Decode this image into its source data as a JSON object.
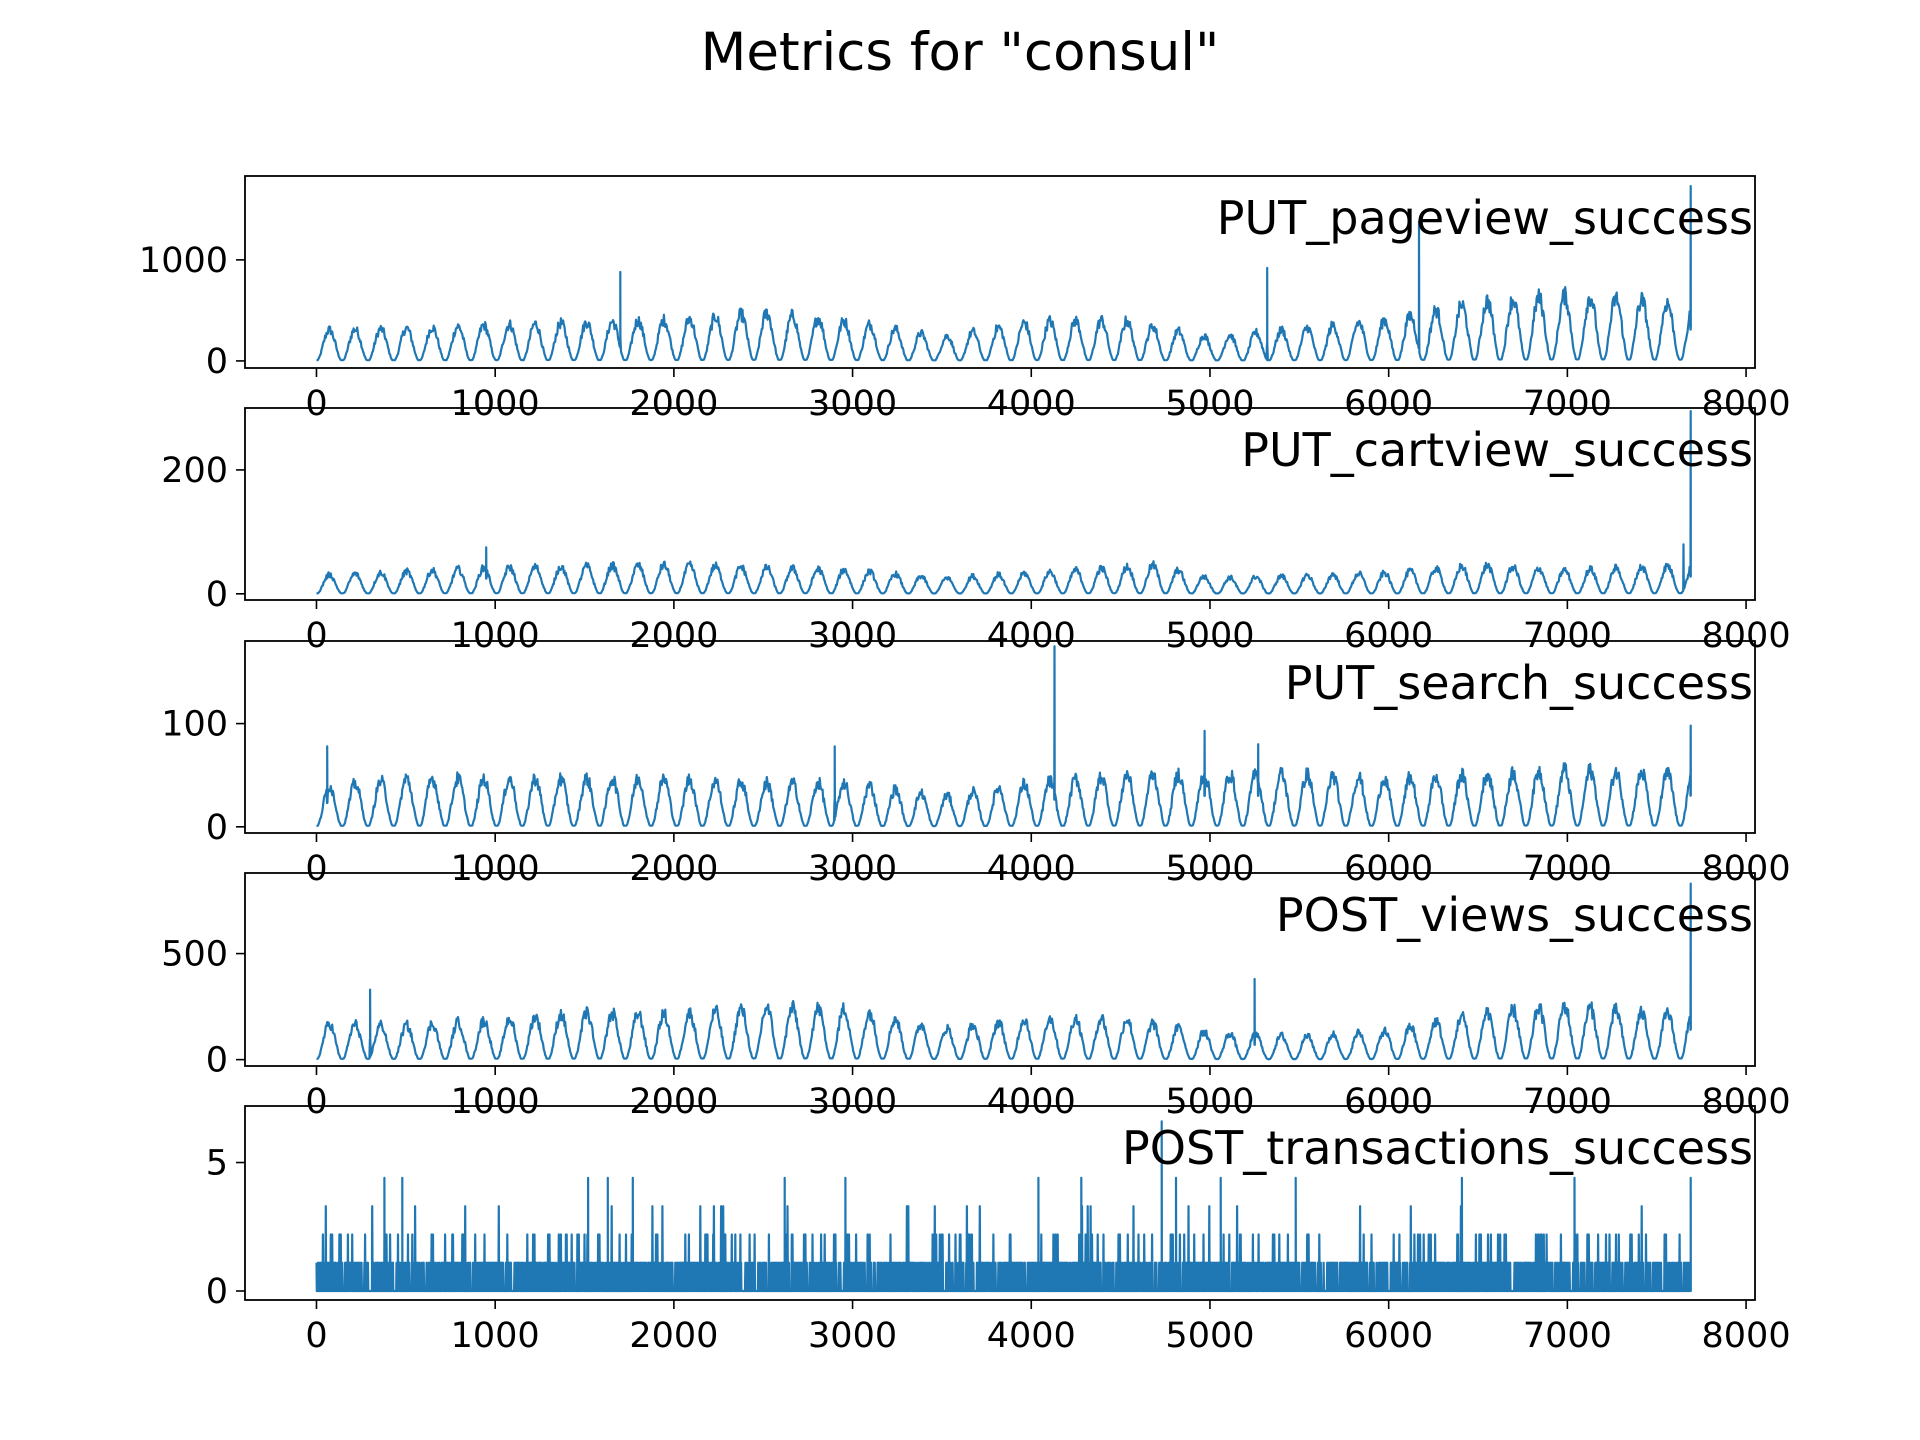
{
  "figure": {
    "title": "Metrics for \"consul\""
  },
  "chart_data": [
    {
      "type": "line",
      "label": "PUT_pageview_success",
      "color": "#1f77b4",
      "xlim": [
        -400,
        8050
      ],
      "ylim": [
        -70,
        1830
      ],
      "xticks": [
        0,
        1000,
        2000,
        3000,
        4000,
        5000,
        6000,
        7000,
        8000
      ],
      "yticks": [
        0,
        1000
      ],
      "series_points": 7690,
      "period": 144,
      "base_envelope": [
        [
          0,
          360
        ],
        [
          500,
          380
        ],
        [
          1000,
          420
        ],
        [
          1500,
          450
        ],
        [
          2000,
          480
        ],
        [
          2500,
          560
        ],
        [
          3000,
          460
        ],
        [
          3500,
          280
        ],
        [
          4000,
          460
        ],
        [
          4500,
          480
        ],
        [
          5000,
          280
        ],
        [
          5500,
          380
        ],
        [
          6000,
          480
        ],
        [
          6500,
          690
        ],
        [
          7000,
          760
        ],
        [
          7500,
          700
        ],
        [
          7690,
          620
        ]
      ],
      "spikes": [
        [
          1700,
          880
        ],
        [
          5320,
          920
        ],
        [
          6170,
          1380
        ],
        [
          7690,
          1730
        ]
      ],
      "x_ticks_text": [
        "0",
        "1000",
        "2000",
        "3000",
        "4000",
        "5000",
        "6000",
        "7000",
        "8000"
      ],
      "y_ticks_text": [
        "0",
        "1000"
      ]
    },
    {
      "type": "line",
      "label": "PUT_cartview_success",
      "color": "#1f77b4",
      "xlim": [
        -400,
        8050
      ],
      "ylim": [
        -10,
        300
      ],
      "xticks": [
        0,
        1000,
        2000,
        3000,
        4000,
        5000,
        6000,
        7000,
        8000
      ],
      "yticks": [
        0,
        200
      ],
      "series_points": 7690,
      "period": 144,
      "base_envelope": [
        [
          0,
          35
        ],
        [
          1000,
          50
        ],
        [
          2000,
          55
        ],
        [
          3000,
          45
        ],
        [
          3500,
          30
        ],
        [
          4000,
          40
        ],
        [
          4700,
          55
        ],
        [
          5000,
          30
        ],
        [
          5500,
          35
        ],
        [
          6000,
          40
        ],
        [
          6500,
          55
        ],
        [
          7000,
          45
        ],
        [
          7690,
          55
        ]
      ],
      "spikes": [
        [
          950,
          75
        ],
        [
          7650,
          80
        ],
        [
          7690,
          295
        ]
      ],
      "x_ticks_text": [
        "0",
        "1000",
        "2000",
        "3000",
        "4000",
        "5000",
        "6000",
        "7000",
        "8000"
      ],
      "y_ticks_text": [
        "0",
        "200"
      ]
    },
    {
      "type": "line",
      "label": "PUT_search_success",
      "color": "#1f77b4",
      "xlim": [
        -400,
        8050
      ],
      "ylim": [
        -6,
        180
      ],
      "xticks": [
        0,
        1000,
        2000,
        3000,
        4000,
        5000,
        6000,
        7000,
        8000
      ],
      "yticks": [
        0,
        100
      ],
      "series_points": 7690,
      "period": 144,
      "base_envelope": [
        [
          0,
          45
        ],
        [
          500,
          55
        ],
        [
          1000,
          55
        ],
        [
          1500,
          55
        ],
        [
          2000,
          55
        ],
        [
          2500,
          50
        ],
        [
          3000,
          50
        ],
        [
          3500,
          35
        ],
        [
          4000,
          50
        ],
        [
          4500,
          60
        ],
        [
          5000,
          60
        ],
        [
          5500,
          60
        ],
        [
          6000,
          55
        ],
        [
          6500,
          60
        ],
        [
          7000,
          65
        ],
        [
          7690,
          60
        ]
      ],
      "spikes": [
        [
          60,
          78
        ],
        [
          2900,
          78
        ],
        [
          4130,
          175
        ],
        [
          4970,
          93
        ],
        [
          5270,
          80
        ],
        [
          7690,
          98
        ]
      ],
      "x_ticks_text": [
        "0",
        "1000",
        "2000",
        "3000",
        "4000",
        "5000",
        "6000",
        "7000",
        "8000"
      ],
      "y_ticks_text": [
        "0",
        "100"
      ]
    },
    {
      "type": "line",
      "label": "POST_views_success",
      "color": "#1f77b4",
      "xlim": [
        -400,
        8050
      ],
      "ylim": [
        -30,
        880
      ],
      "xticks": [
        0,
        1000,
        2000,
        3000,
        4000,
        5000,
        6000,
        7000,
        8000
      ],
      "yticks": [
        0,
        500
      ],
      "series_points": 7690,
      "period": 144,
      "base_envelope": [
        [
          0,
          200
        ],
        [
          500,
          190
        ],
        [
          1000,
          220
        ],
        [
          1500,
          260
        ],
        [
          2000,
          250
        ],
        [
          2500,
          290
        ],
        [
          3000,
          280
        ],
        [
          3500,
          170
        ],
        [
          4000,
          230
        ],
        [
          4500,
          230
        ],
        [
          5000,
          150
        ],
        [
          5500,
          130
        ],
        [
          6000,
          160
        ],
        [
          6500,
          260
        ],
        [
          7000,
          300
        ],
        [
          7500,
          250
        ],
        [
          7690,
          280
        ]
      ],
      "spikes": [
        [
          300,
          330
        ],
        [
          5250,
          380
        ],
        [
          7690,
          830
        ]
      ],
      "x_ticks_text": [
        "0",
        "1000",
        "2000",
        "3000",
        "4000",
        "5000",
        "6000",
        "7000",
        "8000"
      ],
      "y_ticks_text": [
        "0",
        "500"
      ]
    },
    {
      "type": "line",
      "label": "POST_transactions_success",
      "color": "#1f77b4",
      "xlim": [
        -400,
        8050
      ],
      "ylim": [
        -0.35,
        7.2
      ],
      "xticks": [
        0,
        1000,
        2000,
        3000,
        4000,
        5000,
        6000,
        7000,
        8000
      ],
      "yticks": [
        0,
        5
      ],
      "series_points": 7690,
      "discrete_levels": [
        0,
        1.1,
        2.2,
        3.3,
        4.4,
        6.6
      ],
      "spikes": [
        [
          380,
          4.4
        ],
        [
          480,
          4.4
        ],
        [
          1520,
          4.4
        ],
        [
          1630,
          4.4
        ],
        [
          1770,
          4.4
        ],
        [
          2620,
          4.4
        ],
        [
          2960,
          4.4
        ],
        [
          4040,
          4.4
        ],
        [
          4280,
          4.4
        ],
        [
          4730,
          6.6
        ],
        [
          4810,
          4.4
        ],
        [
          5060,
          4.4
        ],
        [
          5480,
          4.4
        ],
        [
          6410,
          4.4
        ],
        [
          7040,
          4.4
        ],
        [
          7690,
          4.4
        ]
      ],
      "x_ticks_text": [
        "0",
        "1000",
        "2000",
        "3000",
        "4000",
        "5000",
        "6000",
        "7000",
        "8000"
      ],
      "y_ticks_text": [
        "0",
        "5"
      ]
    }
  ]
}
